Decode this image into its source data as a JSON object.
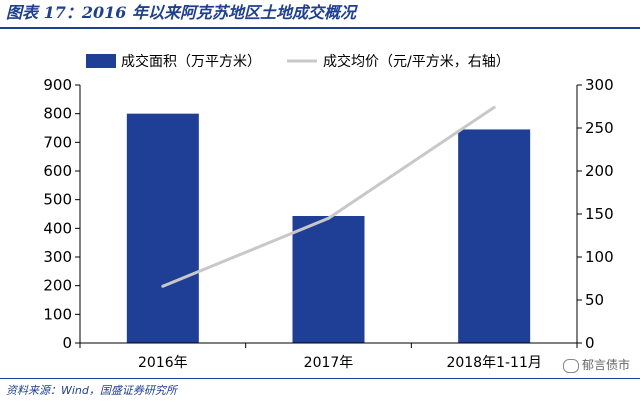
{
  "figure": {
    "title": "图表 17：2016 年以来阿克苏地区土地成交概况",
    "source": "资料来源：Wind，国盛证券研究所",
    "watermark": "郁言债市"
  },
  "chart_data": {
    "type": "bar",
    "categories": [
      "2016年",
      "2017年",
      "2018年1-11月"
    ],
    "series": [
      {
        "name": "成交面积（万平方米）",
        "type": "bar",
        "axis": "left",
        "values": [
          800,
          443,
          745
        ],
        "color": "#1f3f96"
      },
      {
        "name": "成交均价（元/平方米，右轴）",
        "type": "line",
        "axis": "right",
        "values": [
          66,
          145,
          274
        ],
        "color": "#c8c8c8"
      }
    ],
    "y_left": {
      "min": 0,
      "max": 900,
      "ticks": [
        0,
        100,
        200,
        300,
        400,
        500,
        600,
        700,
        800,
        900
      ]
    },
    "y_right": {
      "min": 0,
      "max": 300,
      "ticks": [
        0,
        50,
        100,
        150,
        200,
        250,
        300
      ]
    },
    "legend_position": "top",
    "grid": false
  }
}
